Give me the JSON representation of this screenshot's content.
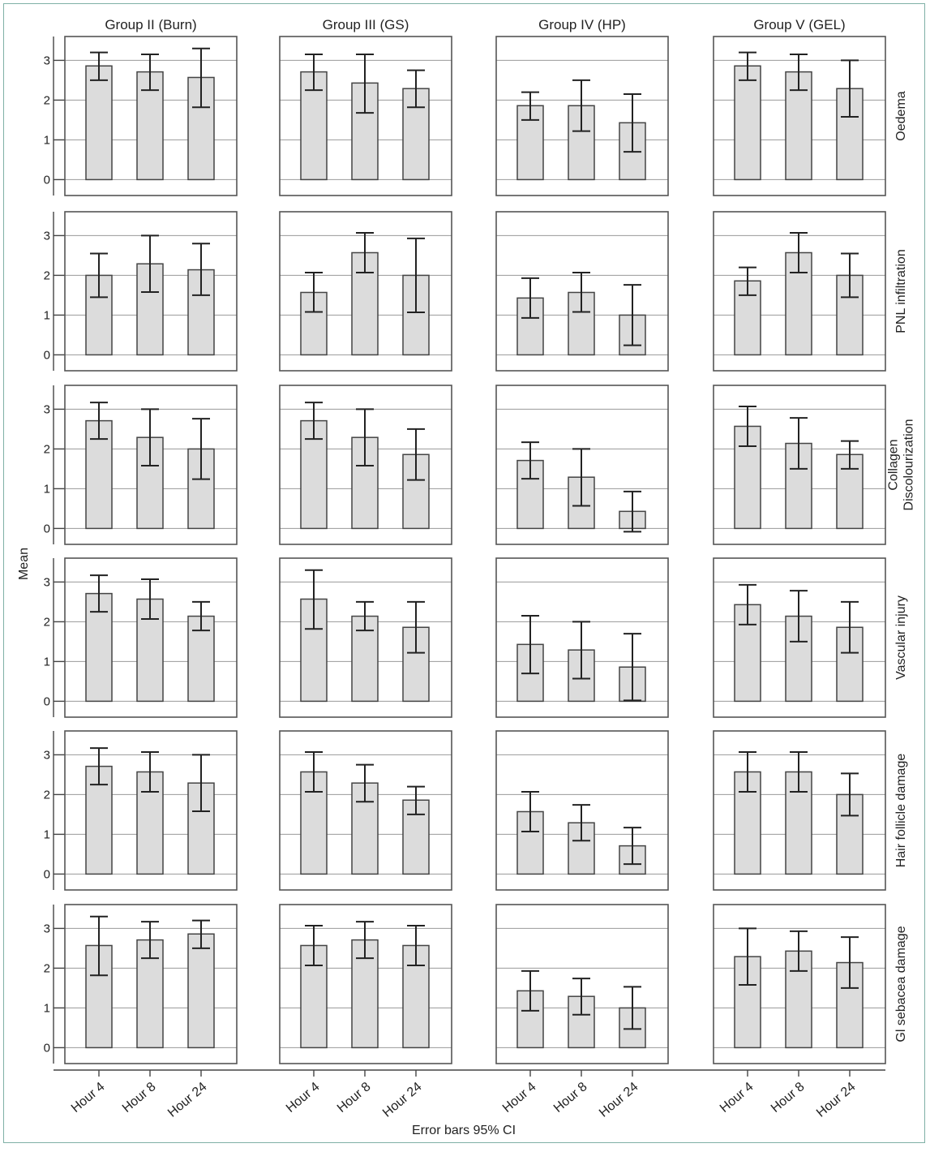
{
  "chart_data": {
    "type": "bar",
    "ylabel": "Mean",
    "xlabel": "Error bars 95% CI",
    "ylim": [
      -0.4,
      3.6
    ],
    "yticks": [
      0,
      1,
      2,
      3
    ],
    "categories": [
      "Hour 4",
      "Hour 8",
      "Hour 24"
    ],
    "groups": [
      "Group II (Burn)",
      "Group III (GS)",
      "Group IV (HP)",
      "Group V (GEL)"
    ],
    "measures": [
      {
        "name": "Oedema",
        "panels": [
          {
            "group": "Group II (Burn)",
            "values": [
              2.86,
              2.71,
              2.57
            ],
            "ci_low": [
              2.5,
              2.25,
              1.82
            ],
            "ci_high": [
              3.2,
              3.15,
              3.3
            ]
          },
          {
            "group": "Group III (GS)",
            "values": [
              2.71,
              2.43,
              2.29
            ],
            "ci_low": [
              2.25,
              1.68,
              1.82
            ],
            "ci_high": [
              3.15,
              3.15,
              2.75
            ]
          },
          {
            "group": "Group IV (HP)",
            "values": [
              1.86,
              1.86,
              1.43
            ],
            "ci_low": [
              1.5,
              1.22,
              0.7
            ],
            "ci_high": [
              2.2,
              2.5,
              2.15
            ]
          },
          {
            "group": "Group V (GEL)",
            "values": [
              2.86,
              2.71,
              2.29
            ],
            "ci_low": [
              2.5,
              2.25,
              1.58
            ],
            "ci_high": [
              3.2,
              3.15,
              3.0
            ]
          }
        ]
      },
      {
        "name": "PNL infiltration",
        "panels": [
          {
            "group": "Group II (Burn)",
            "values": [
              2.0,
              2.29,
              2.14
            ],
            "ci_low": [
              1.45,
              1.58,
              1.5
            ],
            "ci_high": [
              2.55,
              3.0,
              2.8
            ]
          },
          {
            "group": "Group III (GS)",
            "values": [
              1.57,
              2.57,
              2.0
            ],
            "ci_low": [
              1.08,
              2.07,
              1.07
            ],
            "ci_high": [
              2.07,
              3.07,
              2.93
            ]
          },
          {
            "group": "Group IV (HP)",
            "values": [
              1.43,
              1.57,
              1.0
            ],
            "ci_low": [
              0.93,
              1.08,
              0.24
            ],
            "ci_high": [
              1.93,
              2.07,
              1.76
            ]
          },
          {
            "group": "Group V (GEL)",
            "values": [
              1.86,
              2.57,
              2.0
            ],
            "ci_low": [
              1.5,
              2.07,
              1.45
            ],
            "ci_high": [
              2.2,
              3.07,
              2.55
            ]
          }
        ]
      },
      {
        "name": "Collagen\nDiscolourization",
        "panels": [
          {
            "group": "Group II (Burn)",
            "values": [
              2.71,
              2.29,
              2.0
            ],
            "ci_low": [
              2.25,
              1.58,
              1.24
            ],
            "ci_high": [
              3.17,
              3.0,
              2.76
            ]
          },
          {
            "group": "Group III (GS)",
            "values": [
              2.71,
              2.29,
              1.86
            ],
            "ci_low": [
              2.25,
              1.58,
              1.22
            ],
            "ci_high": [
              3.17,
              3.0,
              2.5
            ]
          },
          {
            "group": "Group IV (HP)",
            "values": [
              1.71,
              1.29,
              0.43
            ],
            "ci_low": [
              1.25,
              0.57,
              -0.08
            ],
            "ci_high": [
              2.17,
              2.0,
              0.93
            ]
          },
          {
            "group": "Group V (GEL)",
            "values": [
              2.57,
              2.14,
              1.86
            ],
            "ci_low": [
              2.07,
              1.5,
              1.5
            ],
            "ci_high": [
              3.07,
              2.78,
              2.2
            ]
          }
        ]
      },
      {
        "name": "Vascular injury",
        "panels": [
          {
            "group": "Group II (Burn)",
            "values": [
              2.71,
              2.57,
              2.14
            ],
            "ci_low": [
              2.25,
              2.07,
              1.78
            ],
            "ci_high": [
              3.17,
              3.07,
              2.5
            ]
          },
          {
            "group": "Group III (GS)",
            "values": [
              2.57,
              2.14,
              1.86
            ],
            "ci_low": [
              1.82,
              1.78,
              1.22
            ],
            "ci_high": [
              3.3,
              2.5,
              2.5
            ]
          },
          {
            "group": "Group IV (HP)",
            "values": [
              1.43,
              1.29,
              0.86
            ],
            "ci_low": [
              0.7,
              0.57,
              0.02
            ],
            "ci_high": [
              2.15,
              2.0,
              1.7
            ]
          },
          {
            "group": "Group V (GEL)",
            "values": [
              2.43,
              2.14,
              1.86
            ],
            "ci_low": [
              1.93,
              1.5,
              1.22
            ],
            "ci_high": [
              2.93,
              2.78,
              2.5
            ]
          }
        ]
      },
      {
        "name": "Hair follicle damage",
        "panels": [
          {
            "group": "Group II (Burn)",
            "values": [
              2.71,
              2.57,
              2.29
            ],
            "ci_low": [
              2.25,
              2.07,
              1.58
            ],
            "ci_high": [
              3.17,
              3.07,
              3.0
            ]
          },
          {
            "group": "Group III (GS)",
            "values": [
              2.57,
              2.29,
              1.86
            ],
            "ci_low": [
              2.07,
              1.82,
              1.5
            ],
            "ci_high": [
              3.07,
              2.75,
              2.2
            ]
          },
          {
            "group": "Group IV (HP)",
            "values": [
              1.57,
              1.29,
              0.71
            ],
            "ci_low": [
              1.07,
              0.84,
              0.25
            ],
            "ci_high": [
              2.07,
              1.74,
              1.17
            ]
          },
          {
            "group": "Group V (GEL)",
            "values": [
              2.57,
              2.57,
              2.0
            ],
            "ci_low": [
              2.07,
              2.07,
              1.47
            ],
            "ci_high": [
              3.07,
              3.07,
              2.53
            ]
          }
        ]
      },
      {
        "name": "Gl sebacea damage",
        "panels": [
          {
            "group": "Group II (Burn)",
            "values": [
              2.57,
              2.71,
              2.86
            ],
            "ci_low": [
              1.82,
              2.25,
              2.5
            ],
            "ci_high": [
              3.3,
              3.17,
              3.2
            ]
          },
          {
            "group": "Group III (GS)",
            "values": [
              2.57,
              2.71,
              2.57
            ],
            "ci_low": [
              2.07,
              2.25,
              2.07
            ],
            "ci_high": [
              3.07,
              3.17,
              3.07
            ]
          },
          {
            "group": "Group IV (HP)",
            "values": [
              1.43,
              1.29,
              1.0
            ],
            "ci_low": [
              0.93,
              0.83,
              0.47
            ],
            "ci_high": [
              1.93,
              1.74,
              1.53
            ]
          },
          {
            "group": "Group V (GEL)",
            "values": [
              2.29,
              2.43,
              2.14
            ],
            "ci_low": [
              1.58,
              1.93,
              1.5
            ],
            "ci_high": [
              3.0,
              2.93,
              2.78
            ]
          }
        ]
      }
    ]
  }
}
